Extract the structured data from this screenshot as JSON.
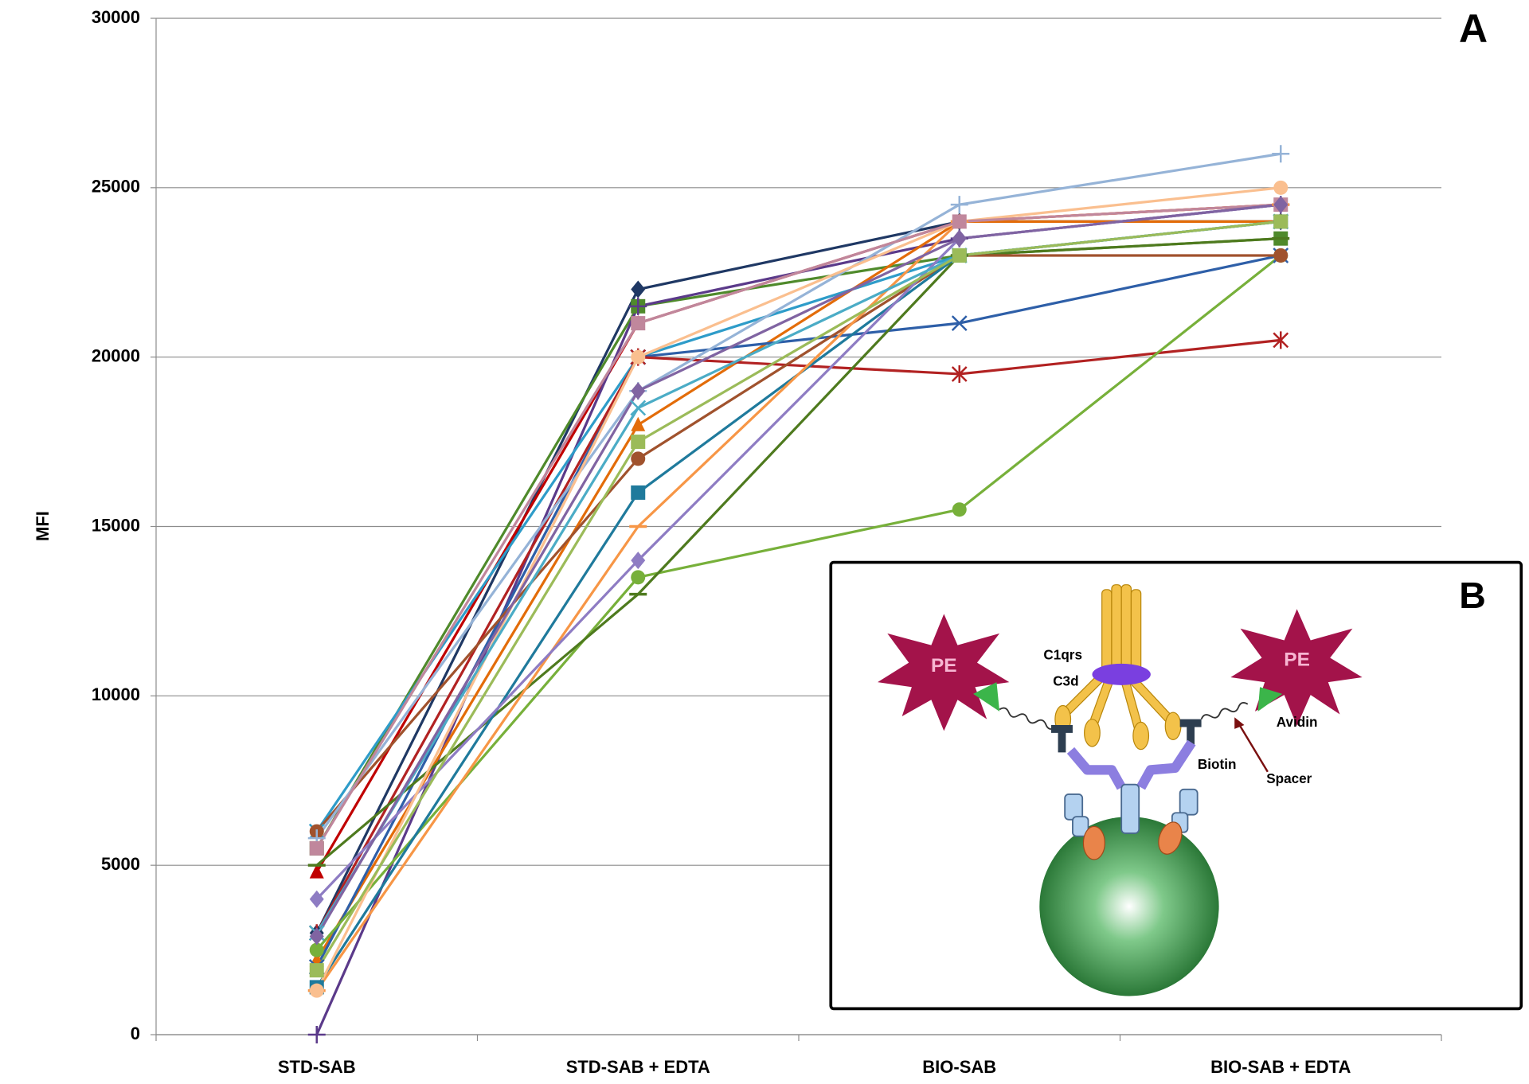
{
  "chart_data": {
    "type": "line",
    "panel_label": "A",
    "y_label": "MFI",
    "categories": [
      "STD-SAB",
      "STD-SAB + EDTA",
      "BIO-SAB",
      "BIO-SAB + EDTA"
    ],
    "ylim": [
      0,
      30000
    ],
    "yticks": [
      0,
      5000,
      10000,
      15000,
      20000,
      25000,
      30000
    ],
    "grid": true,
    "series": [
      {
        "color": "#1f3864",
        "marker": "diamond",
        "values": [
          3000,
          22000,
          24000,
          24000
        ]
      },
      {
        "color": "#c00000",
        "marker": "triangle",
        "values": [
          4800,
          21000,
          24000,
          24500
        ]
      },
      {
        "color": "#4f8a2b",
        "marker": "square",
        "values": [
          5500,
          21500,
          23000,
          23500
        ]
      },
      {
        "color": "#5b3a8a",
        "marker": "plus",
        "values": [
          0,
          21500,
          23500,
          24500
        ]
      },
      {
        "color": "#2e9cc9",
        "marker": "x",
        "values": [
          6000,
          20000,
          23000,
          24000
        ]
      },
      {
        "color": "#e36c09",
        "marker": "triangle",
        "values": [
          2200,
          18000,
          24000,
          24000
        ]
      },
      {
        "color": "#2e5fa8",
        "marker": "x",
        "values": [
          2000,
          20000,
          21000,
          23000
        ]
      },
      {
        "color": "#b22222",
        "marker": "star",
        "values": [
          3000,
          20000,
          19500,
          20500
        ]
      },
      {
        "color": "#77b03a",
        "marker": "circle",
        "values": [
          2500,
          13500,
          15500,
          23000
        ]
      },
      {
        "color": "#4e7a1e",
        "marker": "dash",
        "values": [
          5000,
          13000,
          23000,
          23500
        ]
      },
      {
        "color": "#a0522d",
        "marker": "circle",
        "values": [
          6000,
          17000,
          23000,
          23000
        ]
      },
      {
        "color": "#1f7a9c",
        "marker": "square",
        "values": [
          1400,
          16000,
          23000,
          24000
        ]
      },
      {
        "color": "#f79646",
        "marker": "dash",
        "values": [
          1300,
          15000,
          24000,
          24500
        ]
      },
      {
        "color": "#8e7cc3",
        "marker": "diamond",
        "values": [
          4000,
          14000,
          23500,
          24500
        ]
      },
      {
        "color": "#95b3d7",
        "marker": "plus",
        "values": [
          5800,
          19000,
          24500,
          26000
        ]
      },
      {
        "color": "#fabf8f",
        "marker": "circle",
        "values": [
          1300,
          20000,
          24000,
          25000
        ]
      },
      {
        "color": "#c0879c",
        "marker": "square",
        "values": [
          5500,
          21000,
          24000,
          24500
        ]
      },
      {
        "color": "#4bacc6",
        "marker": "x",
        "values": [
          3000,
          18500,
          23000,
          24000
        ]
      },
      {
        "color": "#8064a2",
        "marker": "diamond",
        "values": [
          2900,
          19000,
          23500,
          24500
        ]
      },
      {
        "color": "#9bbb59",
        "marker": "square",
        "values": [
          1900,
          17500,
          23000,
          24000
        ]
      }
    ],
    "inset": {
      "label": "B",
      "pe_left": "PE",
      "pe_right": "PE",
      "c1qrs": "C1qrs",
      "c3d": "C3d",
      "avidin": "Avidin",
      "biotin": "Biotin",
      "spacer": "Spacer"
    }
  }
}
